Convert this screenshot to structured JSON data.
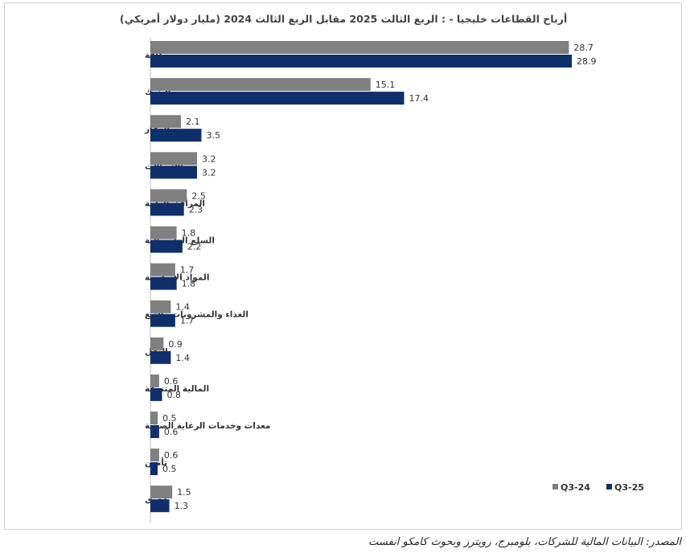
{
  "chart_data": {
    "type": "bar",
    "orientation": "horizontal",
    "title": "أرباح القطاعات خليجيا - : الربع  الثالث 2025 مقابل الربع  الثالث 2024 (مليار دولار أمريكي)",
    "categories": [
      "طاقة",
      "البنوك",
      "العقار",
      "الاتصالات",
      "المرافق العامة",
      "السلع الرأسمالية",
      "المواد الأساسية",
      "الغذاء والمشروبات والتبغ",
      "النقل",
      "المالية المتنوعة",
      "معدات وخدمات الرعاية الصحية",
      "تأمين",
      "أخرى"
    ],
    "series": [
      {
        "name": "Q3-24",
        "color": "#808080",
        "values": [
          28.7,
          15.1,
          2.1,
          3.2,
          2.5,
          1.8,
          1.7,
          1.4,
          0.9,
          0.6,
          0.5,
          0.6,
          1.5
        ]
      },
      {
        "name": "Q3-25",
        "color": "#0f2f6b",
        "values": [
          28.9,
          17.4,
          3.5,
          3.2,
          2.3,
          2.2,
          1.8,
          1.7,
          1.4,
          0.8,
          0.6,
          0.5,
          1.3
        ]
      }
    ],
    "xlim": [
      0,
      35
    ],
    "grid": false,
    "legend_position": "bottom-right"
  },
  "source_note": "المصدر: البيانات المالية للشركات، بلومبرج، رويترز وبحوث كامكو انفست"
}
